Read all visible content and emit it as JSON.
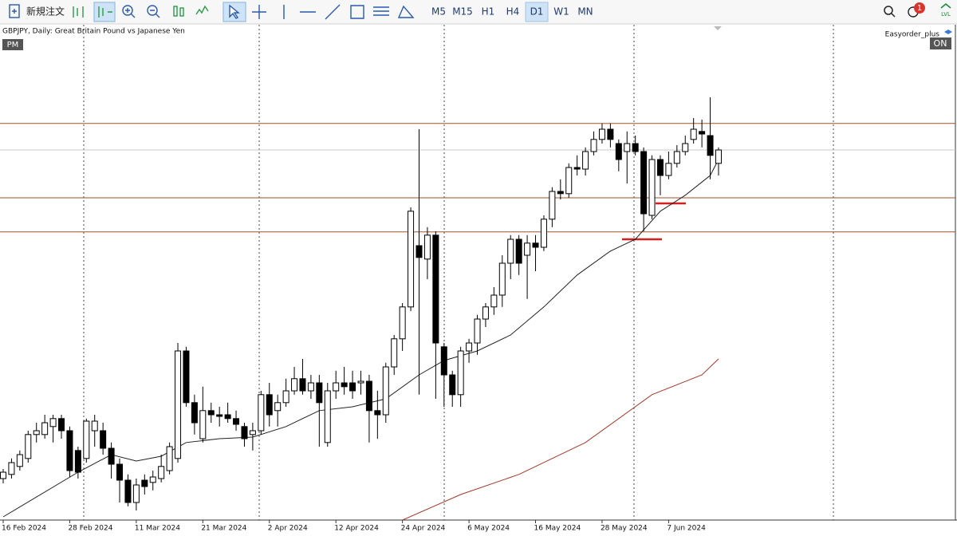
{
  "toolbar": {
    "new_order": "新規注文",
    "timeframes": [
      "M5",
      "M15",
      "H1",
      "H4",
      "D1",
      "W1",
      "MN"
    ],
    "notifications": "1",
    "lvl": "LVL"
  },
  "chart_data": {
    "type": "candlestick",
    "title": "GBPJPY, Daily:  Great Britain Pound vs Japanese Yen",
    "pm_label": "PM",
    "ea_name": "Easyorder_plus",
    "ea_status": "ON",
    "ylim": [
      187.7,
      203.25
    ],
    "xticks": [
      {
        "value": 0,
        "label": "16 Feb 2024"
      },
      {
        "value": 8,
        "label": "28 Feb 2024"
      },
      {
        "value": 16,
        "label": "11 Mar 2024"
      },
      {
        "value": 24,
        "label": "21 Mar 2024"
      },
      {
        "value": 32,
        "label": "2 Apr 2024"
      },
      {
        "value": 40,
        "label": "12 Apr 2024"
      },
      {
        "value": 48,
        "label": "24 Apr 2024"
      },
      {
        "value": 56,
        "label": "6 May 2024"
      },
      {
        "value": 64,
        "label": "16 May 2024"
      },
      {
        "value": 72,
        "label": "28 May 2024"
      },
      {
        "value": 80,
        "label": "7 Jun 2024"
      }
    ],
    "open": [
      189.0,
      189.13,
      189.38,
      189.63,
      190.38,
      190.38,
      190.63,
      190.88,
      190.5,
      189.88,
      189.63,
      190.5,
      190.5,
      189.95,
      189.45,
      188.95,
      188.25,
      188.95,
      188.88,
      189.0,
      189.25,
      189.63,
      193.0,
      191.38,
      190.25,
      191.13,
      191.0,
      191.0,
      190.88,
      190.63,
      190.38,
      190.5,
      191.63,
      191.13,
      191.38,
      191.75,
      192.13,
      191.75,
      192.0,
      190.13,
      191.75,
      192.0,
      192.0,
      192.0,
      192.05,
      191.13,
      191.0,
      192.5,
      193.38,
      194.38,
      196.3,
      195.88,
      196.63,
      193.13,
      192.25,
      191.63,
      193.0,
      193.25,
      194.0,
      194.38,
      194.75,
      195.75,
      196.5,
      196.0,
      196.38,
      196.25,
      197.13,
      198.0,
      197.93,
      198.75,
      198.7,
      199.25,
      199.63,
      199.95,
      199.5,
      199.25,
      199.5,
      199.25,
      197.25,
      199.0,
      198.5,
      198.88,
      199.25,
      199.63,
      199.88,
      199.75,
      198.88
    ],
    "high": [
      189.3,
      189.63,
      189.88,
      190.5,
      190.75,
      191.0,
      191.0,
      191.0,
      190.63,
      190.0,
      190.88,
      191.0,
      190.75,
      190.13,
      189.63,
      189.13,
      189.0,
      189.13,
      189.25,
      189.75,
      190.13,
      193.25,
      193.13,
      191.63,
      191.88,
      191.38,
      191.25,
      191.38,
      191.13,
      190.75,
      190.75,
      191.75,
      192.0,
      191.63,
      192.13,
      192.5,
      192.75,
      192.25,
      192.25,
      192.0,
      192.38,
      192.5,
      192.38,
      192.38,
      192.25,
      191.75,
      192.63,
      193.5,
      194.5,
      197.5,
      199.95,
      196.88,
      196.75,
      193.25,
      192.38,
      193.13,
      193.38,
      194.13,
      194.5,
      195.0,
      196.0,
      196.63,
      196.63,
      196.63,
      196.63,
      197.25,
      198.13,
      198.38,
      198.88,
      199.13,
      199.38,
      199.88,
      200.13,
      200.13,
      199.63,
      199.88,
      199.75,
      199.38,
      199.13,
      199.13,
      199.25,
      199.45,
      199.75,
      200.3,
      200.25,
      200.95,
      199.38
    ],
    "low": [
      188.85,
      189.0,
      189.25,
      189.5,
      190.13,
      190.25,
      190.13,
      190.25,
      189.05,
      189.0,
      189.5,
      190.0,
      189.75,
      189.0,
      188.25,
      188.13,
      188.0,
      188.5,
      188.63,
      188.88,
      189.13,
      189.5,
      191.25,
      190.38,
      190.13,
      190.75,
      190.63,
      190.75,
      190.5,
      190.0,
      189.88,
      190.38,
      190.63,
      190.63,
      191.25,
      191.63,
      191.63,
      191.5,
      190.0,
      190.0,
      191.5,
      191.63,
      191.5,
      191.63,
      190.13,
      190.25,
      190.75,
      192.25,
      193.0,
      194.25,
      191.63,
      195.25,
      191.5,
      191.25,
      191.25,
      191.25,
      192.63,
      192.88,
      193.75,
      194.13,
      194.38,
      195.25,
      195.38,
      194.63,
      195.5,
      196.13,
      196.88,
      197.75,
      197.8,
      198.5,
      198.5,
      199.13,
      199.5,
      199.38,
      198.63,
      198.25,
      199.13,
      196.75,
      197.13,
      197.88,
      198.38,
      198.75,
      199.13,
      199.5,
      199.38,
      198.38,
      198.5
    ],
    "close": [
      189.2,
      189.5,
      189.75,
      190.38,
      190.5,
      190.75,
      190.88,
      190.5,
      189.25,
      189.2,
      190.8,
      190.8,
      189.95,
      189.45,
      188.95,
      188.25,
      188.8,
      188.75,
      189.05,
      189.38,
      190.0,
      193.0,
      191.38,
      190.75,
      191.13,
      191.0,
      190.95,
      190.88,
      190.7,
      190.25,
      190.5,
      191.63,
      191.0,
      191.38,
      191.75,
      192.13,
      191.75,
      192.0,
      191.38,
      191.75,
      192.0,
      191.88,
      191.75,
      192.05,
      191.13,
      191.0,
      192.5,
      193.38,
      194.38,
      197.38,
      195.93,
      196.63,
      193.25,
      192.25,
      191.63,
      193.0,
      193.25,
      194.0,
      194.38,
      194.75,
      195.75,
      196.5,
      195.75,
      196.38,
      196.25,
      197.13,
      198.0,
      197.93,
      198.75,
      198.7,
      199.25,
      199.63,
      199.95,
      199.63,
      199.0,
      199.5,
      199.25,
      197.3,
      199.0,
      198.5,
      198.88,
      199.25,
      199.5,
      199.95,
      199.8,
      199.13,
      199.3
    ],
    "series": [
      {
        "name": "MA fast",
        "color": "#222222",
        "x": [
          0,
          9,
          13,
          16,
          19,
          22,
          26,
          30,
          34,
          38,
          42,
          46,
          50,
          53,
          57,
          61,
          65,
          69,
          73,
          76,
          79,
          82,
          85,
          86
        ],
        "values": [
          187.8,
          189.2,
          189.75,
          189.55,
          189.7,
          190.13,
          190.25,
          190.3,
          190.63,
          191.13,
          191.25,
          191.5,
          192.25,
          192.7,
          193.0,
          193.5,
          194.38,
          195.38,
          196.13,
          196.5,
          197.38,
          197.88,
          198.5,
          199.0
        ]
      },
      {
        "name": "MA slow",
        "color": "#a0392a",
        "x": [
          48,
          55,
          62,
          70,
          78,
          84,
          86
        ],
        "values": [
          187.7,
          188.5,
          189.13,
          190.13,
          191.63,
          192.25,
          192.75
        ]
      }
    ],
    "levels": [
      {
        "value": 200.13,
        "color": "#a0522d"
      },
      {
        "value": 199.3,
        "color": "#c8c8c8"
      },
      {
        "value": 197.8,
        "color": "#a0522d"
      },
      {
        "value": 196.73,
        "color": "#a0522d"
      }
    ]
  }
}
